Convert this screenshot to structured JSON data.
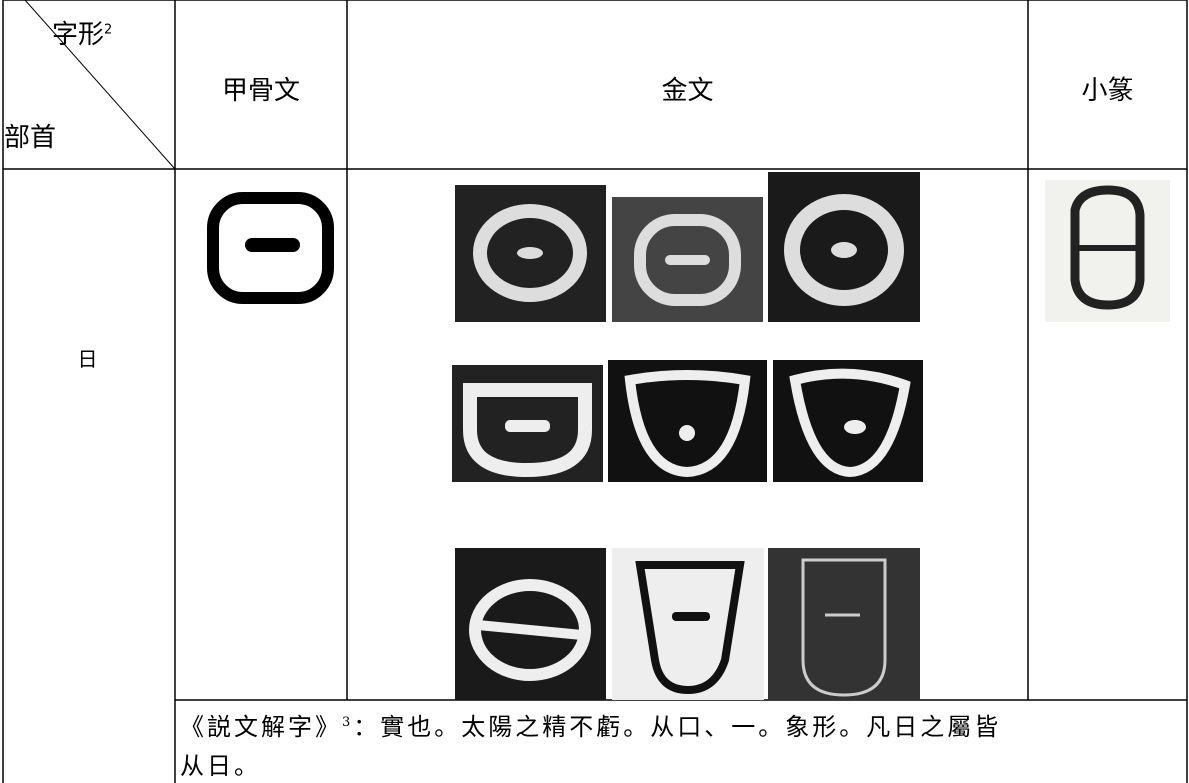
{
  "header": {
    "corner_top": "字形",
    "corner_top_sup": "2",
    "corner_bottom": "部首",
    "columns": [
      "甲骨文",
      "金文",
      "小篆"
    ]
  },
  "rows": [
    {
      "radical": "日"
    }
  ],
  "note": {
    "source": "《説文解字》",
    "source_sup": "3",
    "text": "：實也。太陽之精不虧。从口、一。象形。凡日之屬皆",
    "text_cont": "从日。"
  }
}
